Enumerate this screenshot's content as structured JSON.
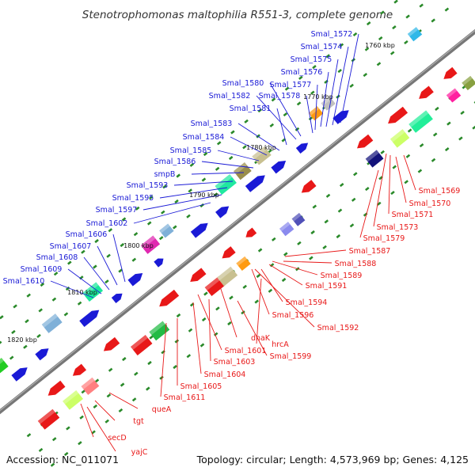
{
  "title": "Stenotrophomonas maltophilia R551-3, complete genome",
  "footer": {
    "accession": "Accession: NC_011071",
    "summary": "Topology: circular; Length: 4,573,969 bp; Genes: 4,125"
  },
  "colors": {
    "forward": "#1a1ad6",
    "reverse": "#e81818",
    "label_forward": "#1a1ad6",
    "label_reverse": "#e81818",
    "backbone": "#777777",
    "ticks": "#2a8a2a"
  },
  "kbp_labels": [
    "1760 kbp",
    "1770 kbp",
    "1780 kbp",
    "1790 kbp",
    "1800 kbp",
    "1810 kbp",
    "1820 kbp"
  ],
  "blue_labels": [
    "Smal_1572",
    "Smal_1574",
    "Smal_1575",
    "Smal_1576",
    "Smal_1577",
    "Smal_1578",
    "Smal_1580",
    "Smal_1582",
    "Smal_1581",
    "Smal_1583",
    "Smal_1584",
    "Smal_1585",
    "Smal_1586",
    "smpB",
    "Smal_1593",
    "Smal_1595",
    "Smal_1597",
    "Smal_1602",
    "Smal_1606",
    "Smal_1607",
    "Smal_1608",
    "Smal_1609",
    "Smal_1610"
  ],
  "red_labels": [
    "Smal_1569",
    "Smal_1570",
    "Smal_1571",
    "Smal_1573",
    "Smal_1579",
    "Smal_1587",
    "Smal_1588",
    "Smal_1589",
    "Smal_1591",
    "Smal_1594",
    "Smal_1596",
    "Smal_1592",
    "hrcA",
    "dnaK",
    "Smal_1599",
    "Smal_1601",
    "Smal_1603",
    "Smal_1604",
    "Smal_1605",
    "Smal_1611",
    "queA",
    "tgt",
    "secD",
    "yajC"
  ]
}
